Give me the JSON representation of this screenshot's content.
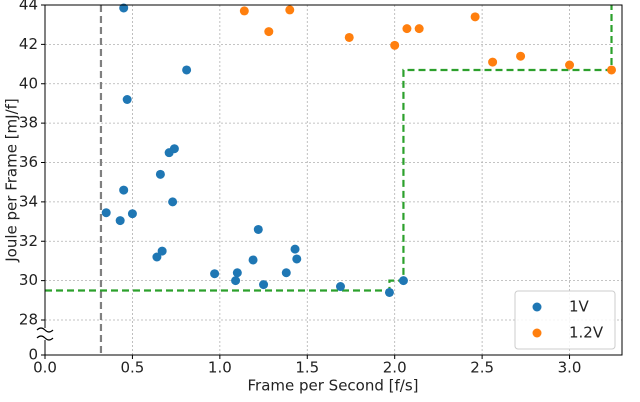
{
  "chart_data": {
    "type": "scatter",
    "xlabel": "Frame per Second [f/s]",
    "ylabel": "Joule per Frame [mJ/f]",
    "xlim": [
      0,
      3.3
    ],
    "xticks": [
      {
        "value": 0,
        "label": "0.0"
      },
      {
        "value": 0.5,
        "label": "0.5"
      },
      {
        "value": 1,
        "label": "1.0"
      },
      {
        "value": 1.5,
        "label": "1.5"
      },
      {
        "value": 2,
        "label": "2.0"
      },
      {
        "value": 2.5,
        "label": "2.5"
      },
      {
        "value": 3,
        "label": "3.0"
      }
    ],
    "ylim": [
      0,
      44
    ],
    "ybreak": [
      0,
      28
    ],
    "yticks": [
      0,
      28,
      30,
      32,
      34,
      36,
      38,
      40,
      42,
      44
    ],
    "grid": true,
    "legend": "lower right",
    "series": [
      {
        "name": "1V",
        "color": "#1f77b4",
        "x": [
          0.45,
          0.81,
          0.47,
          0.74,
          0.71,
          0.66,
          0.45,
          0.73,
          0.35,
          0.5,
          0.43,
          0.67,
          0.64,
          1.22,
          1.43,
          1.44,
          1.19,
          1.1,
          0.97,
          1.38,
          1.09,
          1.25,
          1.69,
          1.97,
          2.05
        ],
        "values": [
          43.85,
          40.7,
          39.2,
          36.7,
          36.5,
          35.4,
          34.6,
          34.0,
          33.45,
          33.4,
          33.05,
          31.5,
          31.2,
          32.6,
          31.6,
          31.1,
          31.05,
          30.4,
          30.35,
          30.4,
          30.0,
          29.8,
          29.7,
          29.4,
          30.0
        ]
      },
      {
        "name": "1.2V",
        "color": "#ff7f0e",
        "x": [
          1.14,
          1.4,
          1.28,
          1.74,
          2.0,
          2.07,
          2.14,
          2.46,
          2.56,
          2.72,
          3.0,
          3.24
        ],
        "values": [
          43.7,
          43.75,
          42.65,
          42.35,
          41.95,
          42.8,
          42.8,
          43.4,
          41.1,
          41.4,
          40.95,
          40.7
        ]
      }
    ],
    "vline": {
      "x": 0.32,
      "color": "#808080"
    },
    "frontier": {
      "color": "#2ca02c",
      "x": [
        0,
        1.97,
        1.97,
        2.05,
        2.05,
        3.24,
        3.24
      ],
      "values": [
        29.5,
        29.5,
        30.0,
        30.0,
        40.7,
        40.7,
        44
      ]
    }
  }
}
